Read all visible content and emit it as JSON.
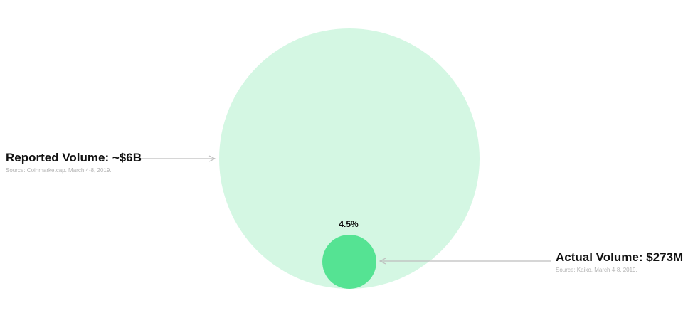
{
  "chart_data": {
    "type": "bubble",
    "title": "",
    "percent_label": "4.5%",
    "series": [
      {
        "name": "Reported Volume",
        "label": "Reported Volume: ~$6B",
        "source": "Source: Coinmarketcap. March 4-8, 2019.",
        "value": 6000000000,
        "color": "#d4f7e3"
      },
      {
        "name": "Actual Volume",
        "label": "Actual Volume: $273M",
        "source": "Source: Kaiko. March 4-8, 2019.",
        "value": 273000000,
        "color": "#55e393"
      }
    ],
    "arrow_color": "#bdbdbd"
  }
}
